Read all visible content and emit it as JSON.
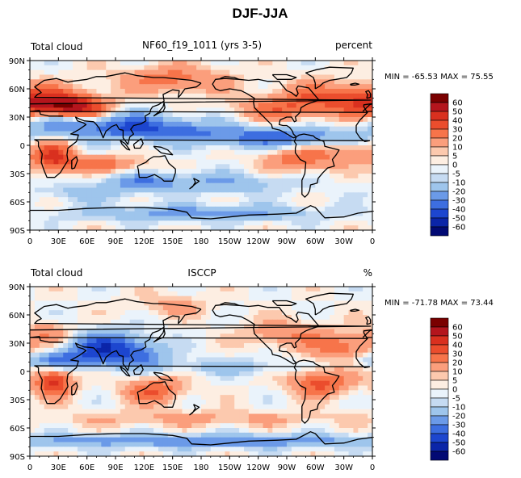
{
  "figure_title": "DJF-JJA",
  "colorbar": {
    "levels": [
      "60",
      "50",
      "40",
      "30",
      "20",
      "10",
      "5",
      "0",
      "-5",
      "-10",
      "-20",
      "-30",
      "-40",
      "-50",
      "-60"
    ],
    "colors": [
      "#7a0000",
      "#b4151d",
      "#d9301f",
      "#eb4d2d",
      "#f7744a",
      "#fb9e7c",
      "#fcc9ae",
      "#fdeee2",
      "#eaf3fb",
      "#c6dbf2",
      "#9ec5ec",
      "#6b9ae8",
      "#3d6ee0",
      "#1d46cf",
      "#0b25a8",
      "#020a74"
    ]
  },
  "chart_data": [
    {
      "type": "heatmap",
      "left_label": "Total cloud",
      "center_label": "NF60_f19_1011 (yrs 3-5)",
      "right_label": "percent",
      "stats": "MIN = -65.53 MAX =  75.55",
      "min": -65.53,
      "max": 75.55,
      "xlim": [
        0,
        360
      ],
      "ylim": [
        -90,
        90
      ],
      "x_ticks": [
        "0",
        "30E",
        "60E",
        "90E",
        "120E",
        "150E",
        "180",
        "150W",
        "120W",
        "90W",
        "60W",
        "30W",
        "0"
      ],
      "y_ticks": [
        "90N",
        "60N",
        "30N",
        "0",
        "30S",
        "60S",
        "90S"
      ],
      "blobs": [
        {
          "lon": 20,
          "lat": 42,
          "w": 28,
          "h": 12,
          "v": 45
        },
        {
          "lon": 55,
          "lat": 38,
          "w": 22,
          "h": 10,
          "v": 40
        },
        {
          "lon": 150,
          "lat": 70,
          "w": 40,
          "h": 10,
          "v": 25
        },
        {
          "lon": 320,
          "lat": 50,
          "w": 40,
          "h": 12,
          "v": 30
        },
        {
          "lon": 260,
          "lat": 38,
          "w": 30,
          "h": 10,
          "v": 22
        },
        {
          "lon": 90,
          "lat": 22,
          "w": 45,
          "h": 10,
          "v": -30
        },
        {
          "lon": 150,
          "lat": 15,
          "w": 50,
          "h": 8,
          "v": -25
        },
        {
          "lon": 270,
          "lat": 8,
          "w": 60,
          "h": 8,
          "v": -35
        },
        {
          "lon": 30,
          "lat": 25,
          "w": 25,
          "h": 8,
          "v": -30
        },
        {
          "lon": 25,
          "lat": -12,
          "w": 15,
          "h": 12,
          "v": 40
        },
        {
          "lon": 75,
          "lat": -20,
          "w": 30,
          "h": 6,
          "v": 25
        },
        {
          "lon": 120,
          "lat": -38,
          "w": 30,
          "h": 6,
          "v": -20
        },
        {
          "lon": 280,
          "lat": -15,
          "w": 25,
          "h": 10,
          "v": 25
        },
        {
          "lon": 330,
          "lat": -5,
          "w": 25,
          "h": 10,
          "v": 20
        },
        {
          "lon": 200,
          "lat": -40,
          "w": 60,
          "h": 8,
          "v": -18
        },
        {
          "lon": 60,
          "lat": -50,
          "w": 40,
          "h": 6,
          "v": -15
        },
        {
          "lon": 180,
          "lat": -72,
          "w": 90,
          "h": 6,
          "v": -25
        }
      ]
    },
    {
      "type": "heatmap",
      "left_label": "Total cloud",
      "center_label": "ISCCP",
      "right_label": "%",
      "stats": "MIN = -71.78 MAX =  73.44",
      "min": -71.78,
      "max": 73.44,
      "xlim": [
        0,
        360
      ],
      "ylim": [
        -90,
        90
      ],
      "x_ticks": [
        "0",
        "30E",
        "60E",
        "90E",
        "120E",
        "150E",
        "180",
        "150W",
        "120W",
        "90W",
        "60W",
        "30W",
        "0"
      ],
      "y_ticks": [
        "90N",
        "60N",
        "30N",
        "0",
        "30S",
        "60S",
        "90S"
      ],
      "blobs": [
        {
          "lon": 80,
          "lat": 25,
          "w": 30,
          "h": 12,
          "v": -45
        },
        {
          "lon": 30,
          "lat": 12,
          "w": 30,
          "h": 6,
          "v": -30
        },
        {
          "lon": 120,
          "lat": 15,
          "w": 20,
          "h": 10,
          "v": -20
        },
        {
          "lon": 25,
          "lat": -12,
          "w": 14,
          "h": 10,
          "v": 45
        },
        {
          "lon": 130,
          "lat": -20,
          "w": 22,
          "h": 10,
          "v": 30
        },
        {
          "lon": 305,
          "lat": -12,
          "w": 22,
          "h": 10,
          "v": 35
        },
        {
          "lon": 270,
          "lat": 40,
          "w": 30,
          "h": 10,
          "v": 20
        },
        {
          "lon": 330,
          "lat": 25,
          "w": 25,
          "h": 10,
          "v": 25
        },
        {
          "lon": 20,
          "lat": 40,
          "w": 20,
          "h": 8,
          "v": 20
        },
        {
          "lon": 210,
          "lat": 5,
          "w": 50,
          "h": 6,
          "v": -15
        },
        {
          "lon": 180,
          "lat": -50,
          "w": 120,
          "h": 6,
          "v": 12
        },
        {
          "lon": 180,
          "lat": -74,
          "w": 180,
          "h": 5,
          "v": -28
        },
        {
          "lon": 150,
          "lat": 70,
          "w": 30,
          "h": 8,
          "v": 12
        }
      ]
    }
  ]
}
